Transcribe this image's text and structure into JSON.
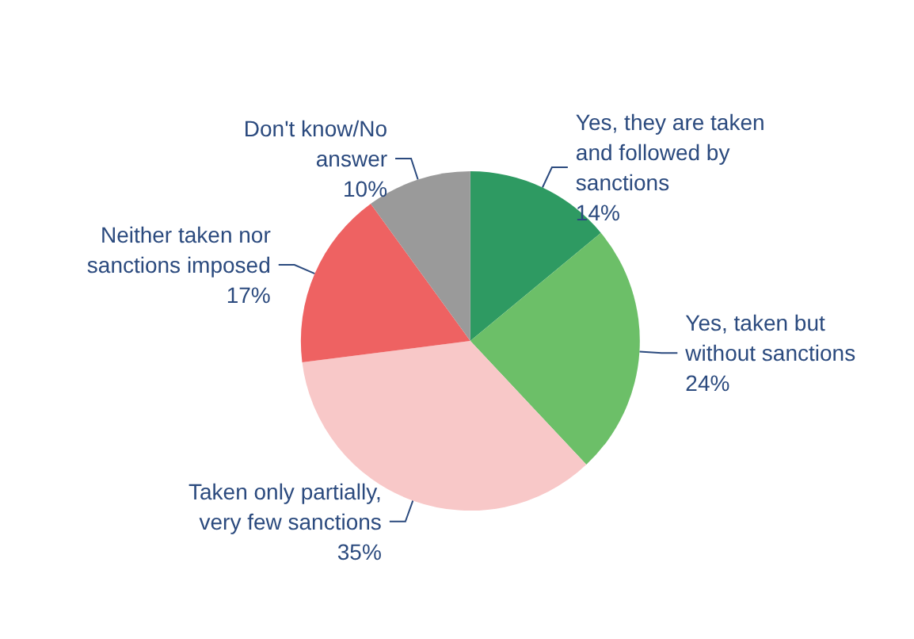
{
  "chart_data": {
    "type": "pie",
    "categories": [
      "Yes, they are taken\nand followed by\nsanctions",
      "Yes, taken but\nwithout sanctions",
      "Taken only partially,\nvery few sanctions",
      "Neither taken nor\nsanctions imposed",
      "Don't know/No\nanswer"
    ],
    "values": [
      14,
      24,
      35,
      17,
      10
    ],
    "colors": [
      "#2e9a62",
      "#6cbf68",
      "#f8c8c8",
      "#ee6262",
      "#9a9a9a"
    ],
    "value_labels": [
      "14%",
      "24%",
      "35%",
      "17%",
      "10%"
    ],
    "legend": false
  }
}
